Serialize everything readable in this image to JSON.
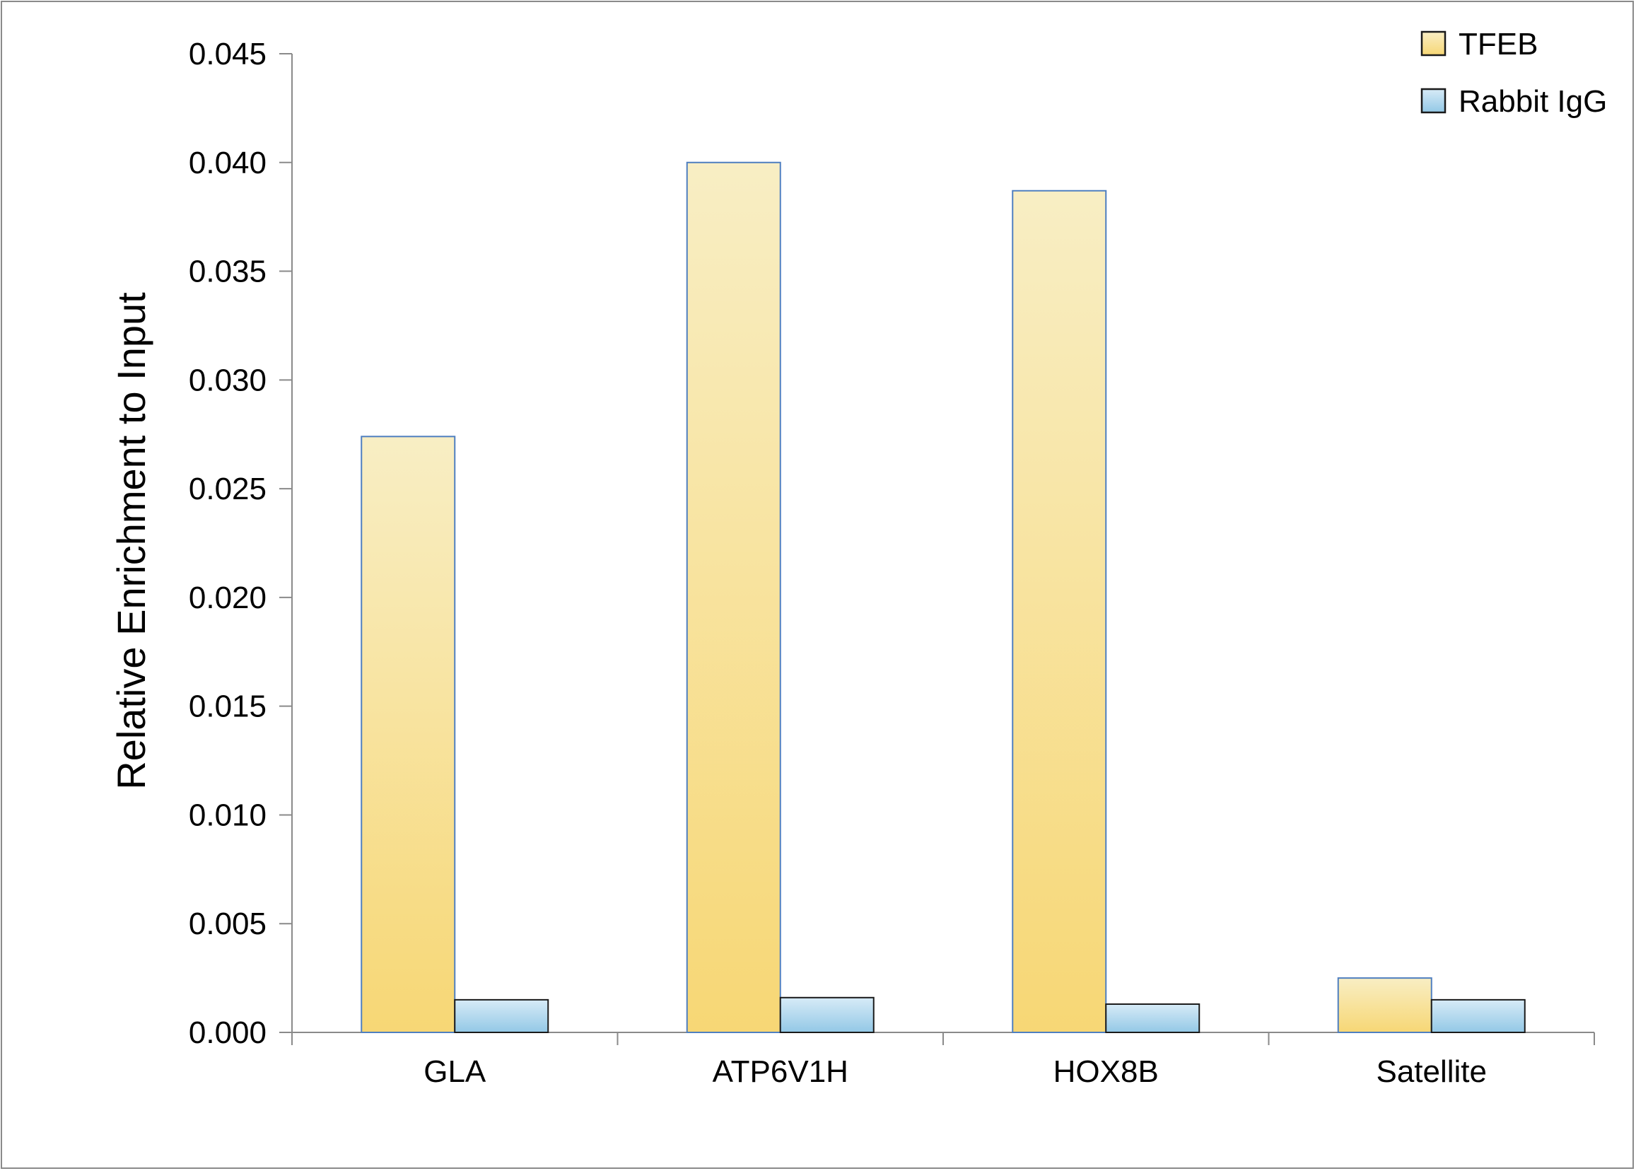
{
  "chart_data": {
    "type": "bar",
    "categories": [
      "GLA",
      "ATP6V1H",
      "HOX8B",
      "Satellite"
    ],
    "series": [
      {
        "name": "TFEB",
        "values": [
          0.0274,
          0.04,
          0.0387,
          0.0025
        ]
      },
      {
        "name": "Rabbit IgG",
        "values": [
          0.0015,
          0.0016,
          0.0013,
          0.0015
        ]
      }
    ],
    "ylabel": "Relative Enrichment to Input",
    "xlabel": "",
    "ylim": [
      0,
      0.045
    ],
    "yticks": [
      "0.000",
      "0.005",
      "0.010",
      "0.015",
      "0.020",
      "0.025",
      "0.030",
      "0.035",
      "0.040",
      "0.045"
    ],
    "grid": false,
    "legend": "top-right",
    "colors": {
      "TFEB_top": "#f8eec4",
      "TFEB_bottom": "#f7d775",
      "IgG_top": "#d7ebf7",
      "IgG_bottom": "#93c8e6",
      "TFEB_stroke": "#4f7fc0",
      "IgG_stroke": "#1a1a1a",
      "axis": "#8a8a8a"
    }
  }
}
